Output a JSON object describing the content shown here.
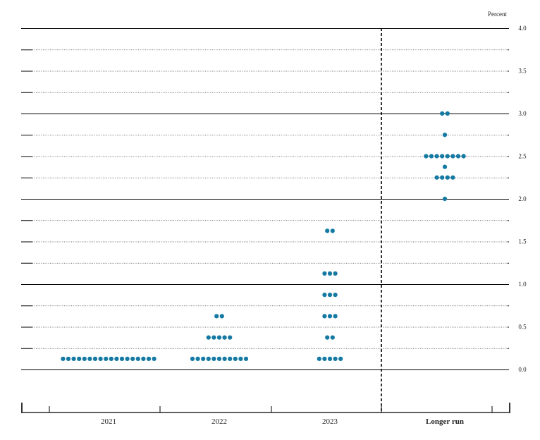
{
  "chart_data": {
    "type": "scatter",
    "title": "",
    "unit_label": "Percent",
    "xlabel": "",
    "ylabel": "",
    "ylim": [
      -0.2,
      4.0
    ],
    "yticks": [
      "0.0",
      "0.5",
      "1.0",
      "1.5",
      "2.0",
      "2.5",
      "3.0",
      "3.5",
      "4.0"
    ],
    "grid": "dotted at every 0.25, solid at every 1.0",
    "categories": [
      "2021",
      "2022",
      "2023",
      "Longer run"
    ],
    "separator_before": "Longer run",
    "dot_color": "#1479a3",
    "series": [
      {
        "category": "2021",
        "points": [
          {
            "y": 0.125,
            "count": 18
          }
        ]
      },
      {
        "category": "2022",
        "points": [
          {
            "y": 0.125,
            "count": 11
          },
          {
            "y": 0.375,
            "count": 5
          },
          {
            "y": 0.625,
            "count": 2
          }
        ]
      },
      {
        "category": "2023",
        "points": [
          {
            "y": 0.125,
            "count": 5
          },
          {
            "y": 0.375,
            "count": 2
          },
          {
            "y": 0.625,
            "count": 3
          },
          {
            "y": 0.875,
            "count": 3
          },
          {
            "y": 1.125,
            "count": 3
          },
          {
            "y": 1.625,
            "count": 2
          }
        ]
      },
      {
        "category": "Longer run",
        "points": [
          {
            "y": 2.0,
            "count": 1
          },
          {
            "y": 2.25,
            "count": 4
          },
          {
            "y": 2.375,
            "count": 1
          },
          {
            "y": 2.5,
            "count": 8
          },
          {
            "y": 2.75,
            "count": 1
          },
          {
            "y": 3.0,
            "count": 2
          }
        ]
      }
    ]
  }
}
